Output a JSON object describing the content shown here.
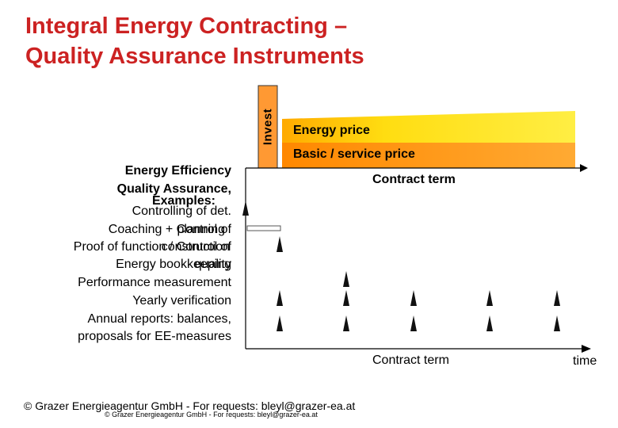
{
  "title": {
    "line1": "Integral Energy Contracting –",
    "line2": "Quality Assurance Instruments"
  },
  "invest_label": "Invest",
  "bands": {
    "energy_price": "Energy price",
    "basic_price": "Basic / service price"
  },
  "axis": {
    "contract_term_top": "Contract term",
    "contract_term_bottom": "Contract term",
    "time": "time"
  },
  "left_labels": {
    "energy_efficiency": "Energy Efficiency",
    "quality_assurance": "Quality Assurance,",
    "examples": "Examples:",
    "controlling": "Controlling of det.",
    "coaching": "Coaching + Control of",
    "planning": "planning",
    "proof": "Proof of function / Control of",
    "construction": "construction",
    "bookkeeping": "Energy bookkeeping",
    "quality": "quality",
    "performance": "Performance measurement",
    "yearly": "Yearly verification",
    "annual": "Annual reports: balances,",
    "proposals": "proposals for EE-measures"
  },
  "colors": {
    "title": "#cc2222",
    "energy_band_light": "#ffee22",
    "energy_band_dark": "#ffaa00",
    "basic_band": "#ff9922",
    "marker": "#111111"
  },
  "footer": {
    "main": "© Grazer Energieagentur GmbH - For requests: bleyl@grazer-ea.at",
    "small": "© Grazer Energieagentur GmbH - For requests: bleyl@grazer-ea.at"
  }
}
